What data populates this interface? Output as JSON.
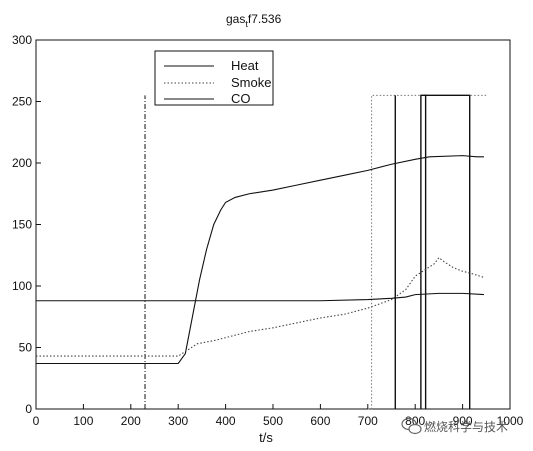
{
  "chart_data": {
    "type": "line",
    "title": "gas",
    "title_sub": "t",
    "title_rest": "f7.536",
    "xlabel": "t/s",
    "ylabel": "",
    "xlim": [
      0,
      1000
    ],
    "ylim": [
      0,
      300
    ],
    "xticks": [
      0,
      100,
      200,
      300,
      400,
      500,
      600,
      700,
      800,
      900,
      1000
    ],
    "yticks": [
      0,
      50,
      100,
      150,
      200,
      250,
      300
    ],
    "grid": false,
    "legend_position": "top-center",
    "series": [
      {
        "name": "Heat",
        "style": "solid",
        "color": "#111111",
        "points": [
          [
            0,
            37
          ],
          [
            200,
            37
          ],
          [
            300,
            37
          ],
          [
            315,
            45
          ],
          [
            330,
            75
          ],
          [
            345,
            105
          ],
          [
            360,
            130
          ],
          [
            375,
            150
          ],
          [
            390,
            162
          ],
          [
            400,
            168
          ],
          [
            420,
            172
          ],
          [
            450,
            175
          ],
          [
            500,
            178
          ],
          [
            550,
            182
          ],
          [
            600,
            186
          ],
          [
            650,
            190
          ],
          [
            700,
            194
          ],
          [
            750,
            199
          ],
          [
            800,
            203
          ],
          [
            830,
            205
          ],
          [
            900,
            206
          ],
          [
            930,
            205
          ],
          [
            945,
            205
          ]
        ]
      },
      {
        "name": "Smoke",
        "style": "dotted",
        "color": "#444444",
        "points": [
          [
            0,
            43
          ],
          [
            200,
            43
          ],
          [
            300,
            43
          ],
          [
            320,
            48
          ],
          [
            340,
            53
          ],
          [
            380,
            56
          ],
          [
            420,
            60
          ],
          [
            450,
            63
          ],
          [
            500,
            66
          ],
          [
            550,
            70
          ],
          [
            600,
            74
          ],
          [
            650,
            77
          ],
          [
            700,
            82
          ],
          [
            750,
            89
          ],
          [
            780,
            97
          ],
          [
            800,
            108
          ],
          [
            820,
            113
          ],
          [
            840,
            118
          ],
          [
            850,
            123
          ],
          [
            860,
            120
          ],
          [
            880,
            115
          ],
          [
            900,
            112
          ],
          [
            920,
            110
          ],
          [
            945,
            107
          ]
        ]
      },
      {
        "name": "CO",
        "style": "solid",
        "color": "#111111",
        "points": [
          [
            0,
            88
          ],
          [
            100,
            88
          ],
          [
            200,
            88
          ],
          [
            300,
            88
          ],
          [
            400,
            88
          ],
          [
            500,
            88
          ],
          [
            600,
            88
          ],
          [
            700,
            89
          ],
          [
            750,
            90
          ],
          [
            780,
            91
          ],
          [
            800,
            93
          ],
          [
            850,
            94
          ],
          [
            900,
            94
          ],
          [
            945,
            93
          ]
        ]
      }
    ],
    "markers": [
      {
        "style": "dashdot",
        "segments": [
          [
            [
              230,
              0
            ],
            [
              230,
              255
            ]
          ]
        ]
      },
      {
        "style": "dotted",
        "segments": [
          [
            [
              700,
              0
            ],
            [
              708,
              0
            ],
            [
              708,
              255
            ],
            [
              950,
              255
            ]
          ]
        ]
      },
      {
        "style": "solid",
        "segments": [
          [
            [
              758,
              0
            ],
            [
              758,
              255
            ]
          ],
          [
            [
              812,
              0
            ],
            [
              812,
              255
            ],
            [
              822,
              255
            ],
            [
              822,
              0
            ]
          ],
          [
            [
              818,
              255
            ],
            [
              915,
              255
            ],
            [
              915,
              0
            ]
          ]
        ]
      }
    ]
  },
  "watermark": {
    "text": "燃烧科学与技术",
    "icon": "wechat-bubble-icon"
  }
}
